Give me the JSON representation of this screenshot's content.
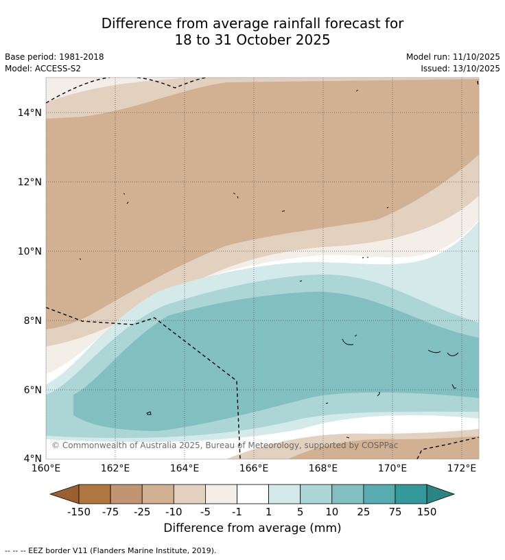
{
  "header": {
    "title_line1": "Difference from average rainfall forecast for",
    "title_line2": "18 to 31 October 2025",
    "base_period": "Base period: 1981-2018",
    "model": "Model: ACCESS-S2",
    "model_run": "Model run: 11/10/2025",
    "issued": "Issued: 13/10/2025"
  },
  "map": {
    "lat_labels": [
      "14°N",
      "12°N",
      "10°N",
      "8°N",
      "6°N",
      "4°N"
    ],
    "lon_labels": [
      "160°E",
      "162°E",
      "164°E",
      "166°E",
      "168°E",
      "170°E",
      "172°E"
    ],
    "copyright": "© Commonwealth of Australia 2025, Bureau of Meteorology, supported by COSPPac"
  },
  "legend": {
    "ticks": [
      "-150",
      "-75",
      "-25",
      "-10",
      "-5",
      "-1",
      "1",
      "5",
      "10",
      "25",
      "75",
      "150"
    ],
    "colors": [
      "#995f2f",
      "#ae7741",
      "#c19571",
      "#d2b192",
      "#e3d1c0",
      "#f3eee8",
      "#ffffff",
      "#d4e9e9",
      "#acd5d5",
      "#82bfc1",
      "#58abaf",
      "#33999a",
      "#2a8585"
    ],
    "title": "Difference from average (mm)"
  },
  "footer": {
    "eez_note": "--  --  -- EEZ border V11 (Flanders Marine Institute, 2019)."
  }
}
